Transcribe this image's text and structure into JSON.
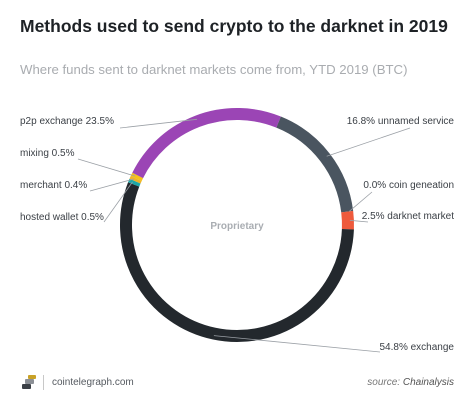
{
  "title": "Methods used to send crypto to the darknet in 2019",
  "subtitle": "Where funds sent to darknet markets come from, YTD 2019 (BTC)",
  "footer": {
    "site": "cointelegraph.com",
    "source_prefix": "source:",
    "source_name": "Chainalysis"
  },
  "chart_data": {
    "type": "pie",
    "center_label": "Proprietary",
    "slices": [
      {
        "label": "16.8% unnamed service",
        "name": "unnamed service",
        "value": 16.8,
        "color": "#4a5560"
      },
      {
        "label": "0.0% coin geneation",
        "name": "coin geneation",
        "value": 0.0,
        "color": "#4a5560"
      },
      {
        "label": "2.5% darknet market",
        "name": "darknet market",
        "value": 2.5,
        "color": "#ee5a3c"
      },
      {
        "label": "54.8% exchange",
        "name": "exchange",
        "value": 54.8,
        "color": "#23282d"
      },
      {
        "label": "hosted wallet 0.5%",
        "name": "hosted wallet",
        "value": 0.5,
        "color": "#1fa8a8"
      },
      {
        "label": "merchant 0.4%",
        "name": "merchant",
        "value": 0.4,
        "color": "#f0b429"
      },
      {
        "label": "mixing 0.5%",
        "name": "mixing",
        "value": 0.5,
        "color": "#f5c21b"
      },
      {
        "label": "p2p exchange 23.5%",
        "name": "p2p exchange",
        "value": 23.5,
        "color": "#9b45b5"
      }
    ]
  }
}
